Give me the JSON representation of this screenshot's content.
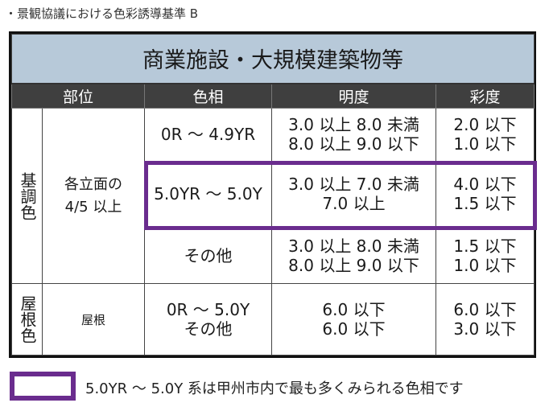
{
  "caption": "・景観協議における色彩誘導基準 B",
  "table": {
    "title": "商業施設・大規模建築物等",
    "headers": [
      "部位",
      "色相",
      "明度",
      "彩度"
    ],
    "groups": [
      {
        "part": "基調色",
        "location": [
          "各立面の",
          "4/5 以上"
        ],
        "rows": [
          {
            "hue": "0R 〜 4.9YR",
            "value": [
              "3.0 以上 8.0 未満",
              "8.0 以上 9.0 以下"
            ],
            "chroma": [
              "2.0 以下",
              "1.0 以下"
            ]
          },
          {
            "hue": "5.0YR 〜 5.0Y",
            "value": [
              "3.0 以上 7.0 未満",
              "7.0 以上"
            ],
            "chroma": [
              "4.0 以下",
              "1.5 以下"
            ]
          },
          {
            "hue": "その他",
            "value": [
              "3.0 以上 8.0 未満",
              "8.0 以上 9.0 以下"
            ],
            "chroma": [
              "1.5 以下",
              "1.0 以下"
            ]
          }
        ]
      },
      {
        "part": "屋根色",
        "location": [
          "屋根"
        ],
        "rows": [
          {
            "hue_lines": [
              "0R 〜 5.0Y",
              "その他"
            ],
            "value": [
              "6.0 以下",
              "6.0 以下"
            ],
            "chroma": [
              "6.0 以下",
              "3.0 以下"
            ]
          }
        ]
      }
    ]
  },
  "legend": {
    "text": "5.0YR 〜 5.0Y 系は甲州市内で最も多くみられる色相です",
    "color": "#6a2c8e"
  },
  "colors": {
    "title_bg": "#b7c9d9",
    "header_bg": "#3f3f3f",
    "highlight": "#6a2c8e"
  }
}
